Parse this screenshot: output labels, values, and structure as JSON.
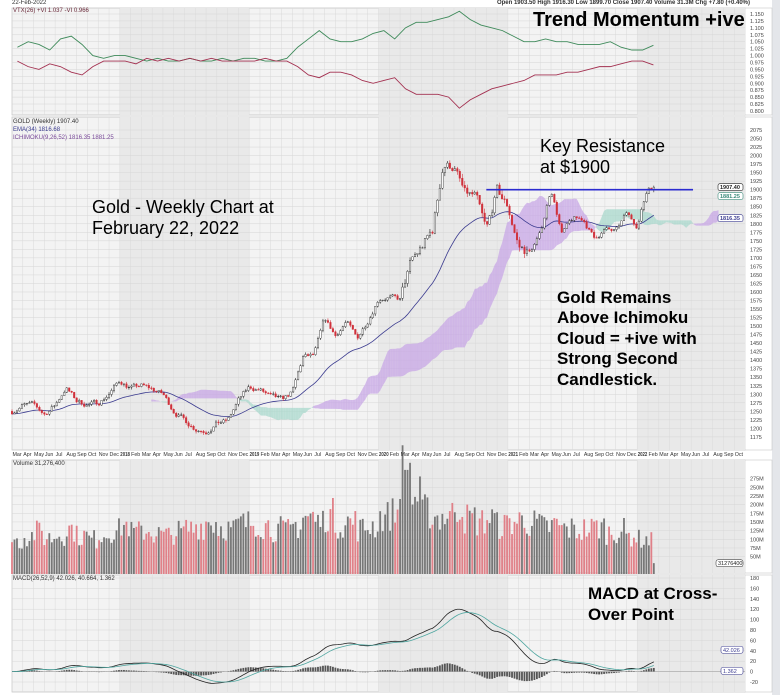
{
  "header": {
    "date": "22-Feb-2022",
    "quote": "Open 1903.50  High 1916.30  Low 1899.70  Close 1907.40  Volume 31.3M  Chg +7.80 (+0.40%)"
  },
  "annotations": {
    "trend": [
      "Trend Momentum +ive"
    ],
    "resistance": [
      "Key Resistance",
      "at $1900"
    ],
    "title": [
      "Gold - Weekly Chart at",
      "February 22, 2022"
    ],
    "cloud": [
      "Gold Remains",
      "Above Ichimoku",
      "Cloud = +ive with",
      "Strong Second",
      "Candlestick."
    ],
    "macd": [
      "MACD at Cross-",
      "Over Point"
    ]
  },
  "colors": {
    "up_candle": "#222222",
    "down_candle": "#d0303a",
    "vi_plus": "#3e8a5a",
    "vi_minus": "#a33050",
    "ema": "#3b3b8f",
    "cloud_bull": "#c7a6e6",
    "cloud_bear": "#a8d8cc",
    "resistance": "#2b2bd0",
    "macd_line": "#222222",
    "signal_line": "#4fa6a0",
    "histogram": "#555555",
    "volume_up": "#777777",
    "volume_down": "#e08088"
  },
  "chart_data": [
    {
      "type": "line",
      "panel": "vortex",
      "legend": "VTX(26) +VI 1.037 -VI 0.966",
      "yticks": [
        "1.150",
        "1.125",
        "1.100",
        "1.075",
        "1.050",
        "1.025",
        "1.000",
        "0.975",
        "0.950",
        "0.925",
        "0.900",
        "0.875",
        "0.850",
        "0.825",
        "0.800"
      ],
      "ylim": [
        0.8,
        1.15
      ],
      "start_month": "2017-03",
      "series": [
        {
          "name": "+VI",
          "values": [
            1.03,
            1.05,
            1.04,
            1.02,
            1.06,
            1.07,
            1.04,
            1.0,
            0.99,
            1.0,
            1.0,
            0.99,
            0.98,
            0.99,
            0.98,
            0.98,
            0.99,
            0.98,
            0.98,
            0.99,
            0.98,
            0.99,
            0.99,
            0.98,
            0.98,
            0.99,
            1.03,
            1.06,
            1.09,
            1.06,
            1.05,
            1.05,
            1.06,
            1.08,
            1.09,
            1.06,
            1.1,
            1.12,
            1.12,
            1.13,
            1.14,
            1.16,
            1.13,
            1.11,
            1.1,
            1.09,
            1.07,
            1.05,
            1.05,
            1.06,
            1.05,
            1.05,
            1.04,
            1.04,
            1.04,
            1.05,
            1.03,
            1.02,
            1.02,
            1.037
          ]
        },
        {
          "name": "-VI",
          "values": [
            0.98,
            0.96,
            0.95,
            0.97,
            0.96,
            0.94,
            0.93,
            0.96,
            0.98,
            0.98,
            0.98,
            0.97,
            0.99,
            0.98,
            0.99,
            0.98,
            0.99,
            0.98,
            0.99,
            0.98,
            0.98,
            0.98,
            0.98,
            0.99,
            0.98,
            0.98,
            0.96,
            0.93,
            0.92,
            0.94,
            0.94,
            0.93,
            0.91,
            0.9,
            0.91,
            0.92,
            0.88,
            0.86,
            0.86,
            0.86,
            0.85,
            0.81,
            0.84,
            0.86,
            0.88,
            0.89,
            0.9,
            0.91,
            0.93,
            0.93,
            0.93,
            0.94,
            0.94,
            0.95,
            0.96,
            0.96,
            0.97,
            0.98,
            0.98,
            0.966
          ]
        }
      ]
    },
    {
      "type": "candlestick",
      "panel": "price",
      "legend": [
        "GOLD (Weekly) 1907.40",
        "EMA(34) 1816.68",
        "ICHIMOKU(9,26,52) 1816.35 1881.25"
      ],
      "yticks": [
        "2075",
        "2050",
        "2025",
        "2000",
        "1975",
        "1950",
        "1925",
        "1900",
        "1875",
        "1850",
        "1825",
        "1800",
        "1775",
        "1750",
        "1725",
        "1700",
        "1675",
        "1650",
        "1625",
        "1600",
        "1575",
        "1550",
        "1525",
        "1500",
        "1475",
        "1450",
        "1425",
        "1400",
        "1375",
        "1350",
        "1325",
        "1300",
        "1275",
        "1250",
        "1225",
        "1200",
        "1175"
      ],
      "ylim": [
        1175,
        2075
      ],
      "last_close": 1907.4,
      "badges": [
        "1907.40",
        "1881.25",
        "1816.35"
      ],
      "resistance_level": 1900,
      "resistance_from": "2020-11",
      "resistance_to": "2022-02",
      "start_month": "2017-03",
      "monthly_close": [
        1250,
        1268,
        1268,
        1242,
        1268,
        1320,
        1280,
        1270,
        1275,
        1302,
        1340,
        1318,
        1325,
        1315,
        1300,
        1252,
        1224,
        1200,
        1192,
        1215,
        1222,
        1282,
        1320,
        1313,
        1292,
        1283,
        1305,
        1409,
        1413,
        1520,
        1472,
        1513,
        1463,
        1517,
        1582,
        1585,
        1577,
        1686,
        1730,
        1780,
        1975,
        1968,
        1886,
        1879,
        1776,
        1895,
        1850,
        1733,
        1715,
        1768,
        1906,
        1770,
        1814,
        1813,
        1757,
        1783,
        1776,
        1829,
        1796,
        1907.4
      ]
    },
    {
      "type": "bar",
      "panel": "volume",
      "legend": "Volume 31,276,400",
      "yticks": [
        "275M",
        "250M",
        "225M",
        "200M",
        "175M",
        "150M",
        "125M",
        "100M",
        "75M",
        "50M"
      ],
      "ylim": [
        0,
        300
      ],
      "unit": "M",
      "badge": "31276400",
      "start_month": "2017-03",
      "monthly_avg_volume": [
        95,
        110,
        120,
        105,
        115,
        130,
        110,
        100,
        115,
        125,
        140,
        120,
        125,
        115,
        110,
        120,
        130,
        140,
        150,
        135,
        130,
        145,
        150,
        140,
        130,
        125,
        140,
        165,
        150,
        170,
        145,
        150,
        130,
        140,
        165,
        175,
        300,
        220,
        180,
        165,
        170,
        195,
        160,
        150,
        160,
        140,
        150,
        155,
        145,
        135,
        140,
        130,
        125,
        130,
        135,
        120,
        125,
        110,
        100,
        95
      ]
    },
    {
      "type": "line",
      "panel": "macd",
      "legend": "MACD(26,52,9) 42.026, 40.664, 1.362",
      "yticks": [
        "180",
        "160",
        "140",
        "120",
        "100",
        "80",
        "60",
        "40",
        "20",
        "0",
        "-20"
      ],
      "ylim": [
        -20,
        185
      ],
      "badges": [
        "42.026",
        "1.362"
      ]
    }
  ],
  "xaxis": {
    "labels": [
      "Mar",
      "Apr",
      "May",
      "Jun",
      "Jul",
      "Aug",
      "Sep",
      "Oct",
      "Nov",
      "Dec",
      "2018",
      "Feb",
      "Mar",
      "Apr",
      "May",
      "Jun",
      "Jul",
      "Aug",
      "Sep",
      "Oct",
      "Nov",
      "Dec",
      "2019",
      "Feb",
      "Mar",
      "Apr",
      "May",
      "Jun",
      "Jul",
      "Aug",
      "Sep",
      "Oct",
      "Nov",
      "Dec",
      "2020",
      "Feb",
      "Mar",
      "Apr",
      "May",
      "Jun",
      "Jul",
      "Aug",
      "Sep",
      "Oct",
      "Nov",
      "Dec",
      "2021",
      "Feb",
      "Mar",
      "Apr",
      "May",
      "Jun",
      "Jul",
      "Aug",
      "Sep",
      "Oct",
      "Nov",
      "Dec",
      "2022",
      "Feb",
      "Mar",
      "Apr",
      "May",
      "Jun",
      "Jul",
      "Aug",
      "Sep",
      "Oct"
    ]
  }
}
